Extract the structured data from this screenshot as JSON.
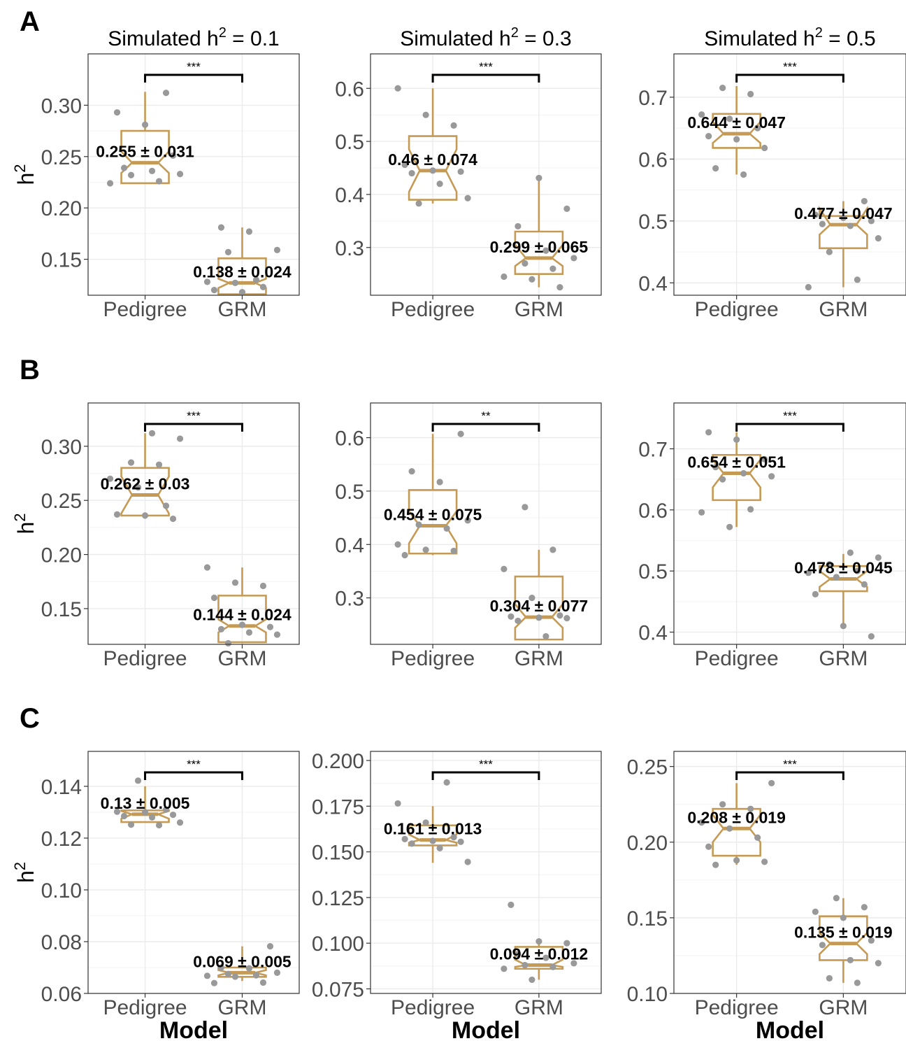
{
  "figure": {
    "row_labels": [
      "A",
      "B",
      "C"
    ],
    "column_titles": [
      "Simulated h² = 0.1",
      "Simulated h² = 0.3",
      "Simulated h² = 0.5"
    ],
    "y_axis_label": "h²",
    "x_axis_label": "Model",
    "colors": {
      "box": "#c49a55",
      "median": "#c49a55",
      "point": "#999999",
      "bracket": "#000000",
      "grid": "#ebebeb",
      "panel_border": "#333333"
    }
  },
  "chart_data": [
    {
      "type": "box",
      "row": "A",
      "title": "Simulated h² = 0.1",
      "categories": [
        "Pedigree",
        "GRM"
      ],
      "ylim": [
        0.115,
        0.35
      ],
      "yticks": [
        0.15,
        0.2,
        0.25,
        0.3
      ],
      "ytick_labels": [
        "0.15",
        "0.20",
        "0.25",
        "0.30"
      ],
      "ylabel": "h²",
      "xlabel": "",
      "significance": "***",
      "series": [
        {
          "name": "Pedigree",
          "annotation": "0.255 ± 0.031",
          "box": {
            "q1": 0.224,
            "median": 0.244,
            "q3": 0.275,
            "notch_lo": 0.234,
            "notch_hi": 0.255,
            "whisker_lo": 0.224,
            "whisker_hi": 0.313
          },
          "points": [
            0.224,
            0.226,
            0.232,
            0.233,
            0.236,
            0.239,
            0.251,
            0.281,
            0.293,
            0.312
          ]
        },
        {
          "name": "GRM",
          "annotation": "0.138 ± 0.024",
          "box": {
            "q1": 0.116,
            "median": 0.127,
            "q3": 0.151,
            "notch_lo": 0.122,
            "notch_hi": 0.131,
            "whisker_lo": 0.116,
            "whisker_hi": 0.181
          },
          "points": [
            0.118,
            0.12,
            0.123,
            0.127,
            0.128,
            0.13,
            0.157,
            0.159,
            0.177,
            0.181
          ]
        }
      ]
    },
    {
      "type": "box",
      "row": "A",
      "title": "Simulated h² = 0.3",
      "categories": [
        "Pedigree",
        "GRM"
      ],
      "ylim": [
        0.21,
        0.665
      ],
      "yticks": [
        0.3,
        0.4,
        0.5,
        0.6
      ],
      "ytick_labels": [
        "0.3",
        "0.4",
        "0.5",
        "0.6"
      ],
      "ylabel": "",
      "xlabel": "",
      "significance": "***",
      "series": [
        {
          "name": "Pedigree",
          "annotation": "0.46 ± 0.074",
          "box": {
            "q1": 0.39,
            "median": 0.445,
            "q3": 0.51,
            "notch_lo": 0.405,
            "notch_hi": 0.485,
            "whisker_lo": 0.383,
            "whisker_hi": 0.6
          },
          "points": [
            0.383,
            0.393,
            0.42,
            0.44,
            0.443,
            0.445,
            0.456,
            0.53,
            0.55,
            0.6
          ]
        },
        {
          "name": "GRM",
          "annotation": "0.299 ± 0.065",
          "box": {
            "q1": 0.25,
            "median": 0.28,
            "q3": 0.33,
            "notch_lo": 0.265,
            "notch_hi": 0.305,
            "whisker_lo": 0.225,
            "whisker_hi": 0.431
          },
          "points": [
            0.225,
            0.24,
            0.245,
            0.26,
            0.27,
            0.28,
            0.294,
            0.34,
            0.373,
            0.431
          ]
        }
      ]
    },
    {
      "type": "box",
      "row": "A",
      "title": "Simulated h² = 0.5",
      "categories": [
        "Pedigree",
        "GRM"
      ],
      "ylim": [
        0.38,
        0.77
      ],
      "yticks": [
        0.4,
        0.5,
        0.6,
        0.7
      ],
      "ytick_labels": [
        "0.4",
        "0.5",
        "0.6",
        "0.7"
      ],
      "ylabel": "",
      "xlabel": "",
      "significance": "***",
      "series": [
        {
          "name": "Pedigree",
          "annotation": "0.644 ± 0.047",
          "box": {
            "q1": 0.618,
            "median": 0.641,
            "q3": 0.673,
            "notch_lo": 0.626,
            "notch_hi": 0.66,
            "whisker_lo": 0.575,
            "whisker_hi": 0.718
          },
          "points": [
            0.575,
            0.585,
            0.618,
            0.632,
            0.637,
            0.65,
            0.665,
            0.672,
            0.705,
            0.715
          ]
        },
        {
          "name": "GRM",
          "annotation": "0.477 ± 0.047",
          "box": {
            "q1": 0.456,
            "median": 0.494,
            "q3": 0.508,
            "notch_lo": 0.478,
            "notch_hi": 0.52,
            "whisker_lo": 0.393,
            "whisker_hi": 0.532
          },
          "points": [
            0.393,
            0.405,
            0.45,
            0.472,
            0.492,
            0.495,
            0.5,
            0.505,
            0.51,
            0.532
          ]
        }
      ]
    },
    {
      "type": "box",
      "row": "B",
      "title": "",
      "categories": [
        "Pedigree",
        "GRM"
      ],
      "ylim": [
        0.117,
        0.34
      ],
      "yticks": [
        0.15,
        0.2,
        0.25,
        0.3
      ],
      "ytick_labels": [
        "0.15",
        "0.20",
        "0.25",
        "0.30"
      ],
      "ylabel": "h²",
      "xlabel": "",
      "significance": "***",
      "series": [
        {
          "name": "Pedigree",
          "annotation": "0.262 ± 0.03",
          "box": {
            "q1": 0.236,
            "median": 0.255,
            "q3": 0.28,
            "notch_lo": 0.238,
            "notch_hi": 0.272,
            "whisker_lo": 0.233,
            "whisker_hi": 0.312
          },
          "points": [
            0.233,
            0.236,
            0.237,
            0.245,
            0.262,
            0.27,
            0.283,
            0.285,
            0.307,
            0.312
          ]
        },
        {
          "name": "GRM",
          "annotation": "0.144 ± 0.024",
          "box": {
            "q1": 0.119,
            "median": 0.134,
            "q3": 0.162,
            "notch_lo": 0.128,
            "notch_hi": 0.14,
            "whisker_lo": 0.118,
            "whisker_hi": 0.188
          },
          "points": [
            0.118,
            0.126,
            0.128,
            0.131,
            0.133,
            0.135,
            0.16,
            0.171,
            0.174,
            0.188
          ]
        }
      ]
    },
    {
      "type": "box",
      "row": "B",
      "title": "",
      "categories": [
        "Pedigree",
        "GRM"
      ],
      "ylim": [
        0.213,
        0.665
      ],
      "yticks": [
        0.3,
        0.4,
        0.5,
        0.6
      ],
      "ytick_labels": [
        "0.3",
        "0.4",
        "0.5",
        "0.6"
      ],
      "ylabel": "",
      "xlabel": "",
      "significance": "**",
      "series": [
        {
          "name": "Pedigree",
          "annotation": "0.454 ± 0.075",
          "box": {
            "q1": 0.383,
            "median": 0.435,
            "q3": 0.502,
            "notch_lo": 0.402,
            "notch_hi": 0.462,
            "whisker_lo": 0.38,
            "whisker_hi": 0.607
          },
          "points": [
            0.38,
            0.388,
            0.39,
            0.4,
            0.43,
            0.437,
            0.445,
            0.517,
            0.537,
            0.607
          ]
        },
        {
          "name": "GRM",
          "annotation": "0.304 ± 0.077",
          "box": {
            "q1": 0.222,
            "median": 0.264,
            "q3": 0.34,
            "notch_lo": 0.244,
            "notch_hi": 0.288,
            "whisker_lo": 0.222,
            "whisker_hi": 0.39
          },
          "points": [
            0.228,
            0.257,
            0.262,
            0.263,
            0.265,
            0.267,
            0.3,
            0.354,
            0.39,
            0.47
          ]
        }
      ]
    },
    {
      "type": "box",
      "row": "B",
      "title": "",
      "categories": [
        "Pedigree",
        "GRM"
      ],
      "ylim": [
        0.38,
        0.775
      ],
      "yticks": [
        0.4,
        0.5,
        0.6,
        0.7
      ],
      "ytick_labels": [
        "0.4",
        "0.5",
        "0.6",
        "0.7"
      ],
      "ylabel": "",
      "xlabel": "",
      "significance": "***",
      "series": [
        {
          "name": "Pedigree",
          "annotation": "0.654 ± 0.051",
          "box": {
            "q1": 0.616,
            "median": 0.66,
            "q3": 0.69,
            "notch_lo": 0.637,
            "notch_hi": 0.682,
            "whisker_lo": 0.572,
            "whisker_hi": 0.727
          },
          "points": [
            0.572,
            0.596,
            0.601,
            0.65,
            0.655,
            0.66,
            0.67,
            0.683,
            0.715,
            0.727
          ]
        },
        {
          "name": "GRM",
          "annotation": "0.478 ± 0.045",
          "box": {
            "q1": 0.467,
            "median": 0.487,
            "q3": 0.508,
            "notch_lo": 0.474,
            "notch_hi": 0.5,
            "whisker_lo": 0.412,
            "whisker_hi": 0.528
          },
          "points": [
            0.393,
            0.41,
            0.462,
            0.478,
            0.49,
            0.497,
            0.5,
            0.511,
            0.522,
            0.53
          ]
        }
      ]
    },
    {
      "type": "box",
      "row": "C",
      "title": "",
      "categories": [
        "Pedigree",
        "GRM"
      ],
      "ylim": [
        0.06,
        0.1535
      ],
      "yticks": [
        0.06,
        0.08,
        0.1,
        0.12,
        0.14
      ],
      "ytick_labels": [
        "0.06",
        "0.08",
        "0.10",
        "0.12",
        "0.14"
      ],
      "ylabel": "h²",
      "xlabel": "Model",
      "significance": "***",
      "series": [
        {
          "name": "Pedigree",
          "annotation": "0.13 ± 0.005",
          "box": {
            "q1": 0.1262,
            "median": 0.1292,
            "q3": 0.1307,
            "notch_lo": 0.1275,
            "notch_hi": 0.1305,
            "whisker_lo": 0.126,
            "whisker_hi": 0.14
          },
          "points": [
            0.125,
            0.1252,
            0.126,
            0.128,
            0.1285,
            0.129,
            0.13,
            0.1302,
            0.131,
            0.1422
          ]
        },
        {
          "name": "GRM",
          "annotation": "0.069 ± 0.005",
          "box": {
            "q1": 0.0664,
            "median": 0.068,
            "q3": 0.07,
            "notch_lo": 0.067,
            "notch_hi": 0.069,
            "whisker_lo": 0.0648,
            "whisker_hi": 0.0782
          },
          "points": [
            0.064,
            0.0642,
            0.0665,
            0.0668,
            0.067,
            0.0675,
            0.068,
            0.0697,
            0.07,
            0.0782
          ]
        }
      ]
    },
    {
      "type": "box",
      "row": "C",
      "title": "",
      "categories": [
        "Pedigree",
        "GRM"
      ],
      "ylim": [
        0.0725,
        0.205
      ],
      "yticks": [
        0.075,
        0.1,
        0.125,
        0.15,
        0.175,
        0.2
      ],
      "ytick_labels": [
        "0.075",
        "0.100",
        "0.125",
        "0.150",
        "0.175",
        "0.200"
      ],
      "ylabel": "",
      "xlabel": "Model",
      "significance": "***",
      "series": [
        {
          "name": "Pedigree",
          "annotation": "0.161 ± 0.013",
          "box": {
            "q1": 0.1535,
            "median": 0.1565,
            "q3": 0.1645,
            "notch_lo": 0.155,
            "notch_hi": 0.1595,
            "whisker_lo": 0.144,
            "whisker_hi": 0.175
          },
          "points": [
            0.1445,
            0.152,
            0.1545,
            0.1555,
            0.156,
            0.157,
            0.158,
            0.166,
            0.1765,
            0.188
          ]
        },
        {
          "name": "GRM",
          "annotation": "0.094 ± 0.012",
          "box": {
            "q1": 0.086,
            "median": 0.088,
            "q3": 0.098,
            "notch_lo": 0.087,
            "notch_hi": 0.091,
            "whisker_lo": 0.08,
            "whisker_hi": 0.101
          },
          "points": [
            0.08,
            0.086,
            0.087,
            0.088,
            0.089,
            0.092,
            0.094,
            0.1,
            0.101,
            0.121
          ]
        }
      ]
    },
    {
      "type": "box",
      "row": "C",
      "title": "",
      "categories": [
        "Pedigree",
        "GRM"
      ],
      "ylim": [
        0.1,
        0.26
      ],
      "yticks": [
        0.1,
        0.15,
        0.2,
        0.25
      ],
      "ytick_labels": [
        "0.10",
        "0.15",
        "0.20",
        "0.25"
      ],
      "ylabel": "",
      "xlabel": "Model",
      "significance": "***",
      "series": [
        {
          "name": "Pedigree",
          "annotation": "0.208 ± 0.019",
          "box": {
            "q1": 0.191,
            "median": 0.209,
            "q3": 0.222,
            "notch_lo": 0.2,
            "notch_hi": 0.218,
            "whisker_lo": 0.185,
            "whisker_hi": 0.239
          },
          "points": [
            0.185,
            0.187,
            0.188,
            0.197,
            0.203,
            0.209,
            0.213,
            0.222,
            0.225,
            0.239
          ]
        },
        {
          "name": "GRM",
          "annotation": "0.135 ± 0.019",
          "box": {
            "q1": 0.122,
            "median": 0.133,
            "q3": 0.151,
            "notch_lo": 0.126,
            "notch_hi": 0.14,
            "whisker_lo": 0.107,
            "whisker_hi": 0.163
          },
          "points": [
            0.107,
            0.11,
            0.12,
            0.122,
            0.132,
            0.135,
            0.15,
            0.154,
            0.157,
            0.163
          ]
        }
      ]
    }
  ]
}
